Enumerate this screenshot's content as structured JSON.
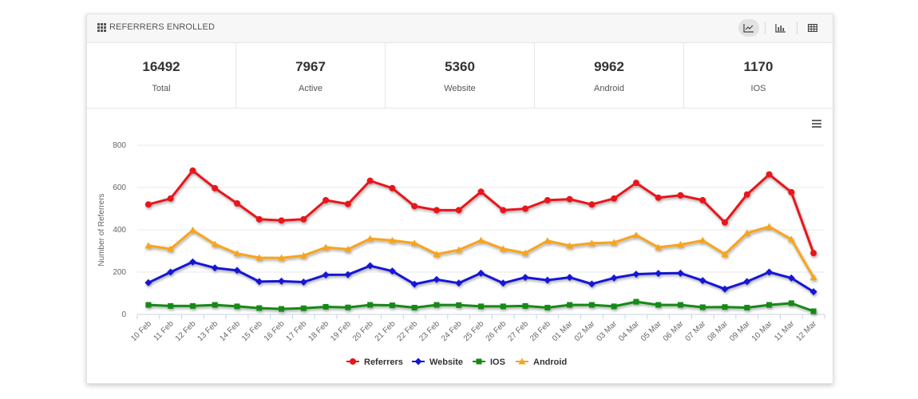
{
  "header": {
    "title": "REFERRERS ENROLLED"
  },
  "toolbar": [
    {
      "name": "line-chart-view-button",
      "icon": "line-chart-icon",
      "active": true
    },
    {
      "name": "bar-chart-view-button",
      "icon": "bar-chart-icon",
      "active": false
    },
    {
      "name": "table-view-button",
      "icon": "table-icon",
      "active": false
    }
  ],
  "stats": [
    {
      "value": "16492",
      "label": "Total"
    },
    {
      "value": "7967",
      "label": "Active"
    },
    {
      "value": "5360",
      "label": "Website"
    },
    {
      "value": "9962",
      "label": "Android"
    },
    {
      "value": "1170",
      "label": "IOS"
    }
  ],
  "chart_data": {
    "type": "line",
    "title": "",
    "xlabel": "",
    "ylabel": "Number of Referrers",
    "ylim": [
      0,
      800
    ],
    "yticks": [
      0,
      200,
      400,
      600,
      800
    ],
    "grid": true,
    "legend_position": "bottom-center",
    "categories": [
      "10 Feb",
      "11 Feb",
      "12 Feb",
      "13 Feb",
      "14 Feb",
      "15 Feb",
      "16 Feb",
      "17 Feb",
      "18 Feb",
      "19 Feb",
      "20 Feb",
      "21 Feb",
      "22 Feb",
      "23 Feb",
      "24 Feb",
      "25 Feb",
      "26 Feb",
      "27 Feb",
      "28 Feb",
      "01 Mar",
      "02 Mar",
      "03 Mar",
      "04 Mar",
      "05 Mar",
      "06 Mar",
      "07 Mar",
      "08 Mar",
      "09 Mar",
      "10 Mar",
      "11 Mar",
      "12 Mar"
    ],
    "series": [
      {
        "name": "Referrers",
        "color": "#e8141b",
        "marker": "circle",
        "values": [
          520,
          548,
          680,
          597,
          525,
          450,
          444,
          450,
          540,
          522,
          632,
          597,
          512,
          493,
          493,
          580,
          493,
          500,
          540,
          545,
          520,
          548,
          622,
          552,
          563,
          540,
          435,
          567,
          662,
          578,
          290
        ]
      },
      {
        "name": "Website",
        "color": "#1515d6",
        "marker": "diamond",
        "values": [
          150,
          200,
          248,
          220,
          208,
          155,
          157,
          153,
          187,
          188,
          230,
          205,
          143,
          165,
          148,
          195,
          148,
          175,
          162,
          175,
          144,
          172,
          190,
          194,
          195,
          160,
          120,
          155,
          200,
          172,
          107
        ]
      },
      {
        "name": "IOS",
        "color": "#148a14",
        "marker": "square",
        "values": [
          45,
          40,
          40,
          45,
          38,
          30,
          26,
          29,
          36,
          33,
          45,
          43,
          32,
          45,
          44,
          38,
          38,
          40,
          32,
          45,
          45,
          38,
          60,
          45,
          45,
          34,
          35,
          32,
          45,
          53,
          15
        ]
      },
      {
        "name": "Android",
        "color": "#f7a41e",
        "marker": "triangle",
        "values": [
          325,
          310,
          398,
          332,
          288,
          268,
          267,
          278,
          317,
          308,
          358,
          350,
          337,
          285,
          305,
          350,
          310,
          290,
          348,
          325,
          337,
          340,
          375,
          317,
          330,
          350,
          285,
          385,
          415,
          355,
          175
        ]
      }
    ]
  },
  "menu": {
    "icon": "hamburger-menu-icon"
  }
}
